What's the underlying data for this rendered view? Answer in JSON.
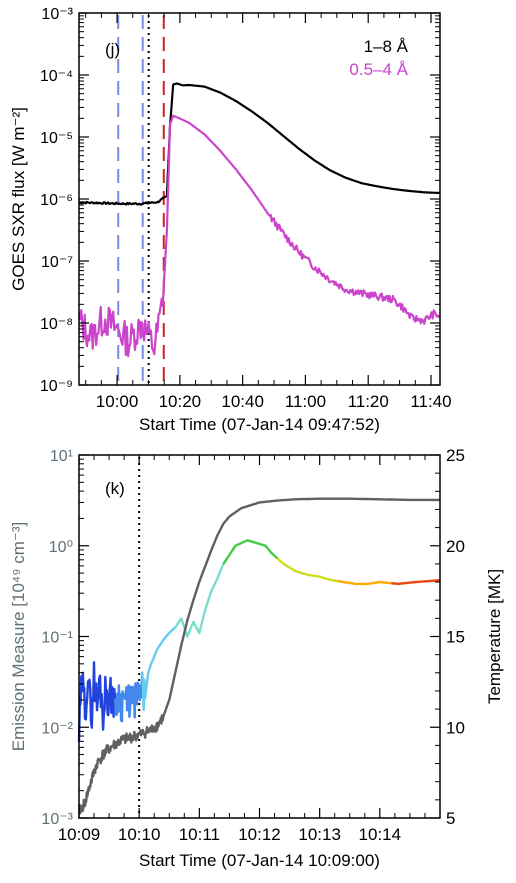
{
  "chart_data": [
    {
      "panel": "(j)",
      "type": "line",
      "xlabel": "Start Time (07-Jan-14 09:47:52)",
      "ylabel": "GOES SXR flux [W m⁻²]",
      "xticks": [
        "10:00",
        "10:20",
        "10:40",
        "11:00",
        "11:20",
        "11:40"
      ],
      "xtick_minutes": [
        12.13,
        32.13,
        52.13,
        72.13,
        92.13,
        112.13
      ],
      "xlim_minutes": [
        0,
        115
      ],
      "y_log": true,
      "ylim": [
        1e-09,
        0.001
      ],
      "yticks": [
        "10⁻⁹",
        "10⁻⁸",
        "10⁻⁷",
        "10⁻⁶",
        "10⁻⁵",
        "10⁻⁴",
        "10⁻³"
      ],
      "ytick_values": [
        1e-09,
        1e-08,
        1e-07,
        1e-06,
        1e-05,
        0.0001,
        0.001
      ],
      "legend_position": "top-right",
      "series": [
        {
          "name": "1–8 Å",
          "color": "#000000",
          "x": [
            0,
            5,
            10,
            15,
            20,
            25,
            28,
            29,
            30,
            31,
            32,
            33,
            35,
            40,
            45,
            50,
            55,
            60,
            65,
            70,
            75,
            80,
            85,
            90,
            95,
            100,
            105,
            110,
            115
          ],
          "y": [
            8.8e-07,
            8.7e-07,
            8.5e-07,
            8.4e-07,
            8.4e-07,
            8.9e-07,
            1.1e-06,
            1.5e-05,
            7e-05,
            7.3e-05,
            7.1e-05,
            6.8e-05,
            6.9e-05,
            6.5e-05,
            5.2e-05,
            3.8e-05,
            2.6e-05,
            1.7e-05,
            1.05e-05,
            6.5e-06,
            4.2e-06,
            2.9e-06,
            2.2e-06,
            1.8e-06,
            1.6e-06,
            1.45e-06,
            1.35e-06,
            1.28e-06,
            1.25e-06
          ]
        },
        {
          "name": "0.5–4 Å",
          "color": "#cc44cc",
          "x": [
            0,
            4,
            8,
            12,
            16,
            20,
            24,
            26,
            27,
            28,
            29,
            30,
            32,
            35,
            40,
            45,
            50,
            55,
            60,
            65,
            70,
            75,
            80,
            85,
            90,
            95,
            100,
            103,
            106,
            110,
            113,
            115
          ],
          "y": [
            1.1e-08,
            6e-09,
            1.2e-08,
            8e-09,
            5e-09,
            1e-08,
            4e-09,
            1.4e-08,
            4e-08,
            3e-07,
            1.6e-05,
            2.2e-05,
            2e-05,
            1.7e-05,
            1.1e-05,
            6e-06,
            3e-06,
            1.4e-06,
            6e-07,
            2.8e-07,
            1.4e-07,
            8e-08,
            5e-08,
            3.5e-08,
            3e-08,
            2.7e-08,
            2.4e-08,
            1.8e-08,
            1.2e-08,
            1.1e-08,
            1.4e-08,
            1.3e-08
          ]
        }
      ],
      "vlines": [
        {
          "x_minutes": 12.5,
          "color": "#7a88e8",
          "style": "dashed"
        },
        {
          "x_minutes": 20.3,
          "color": "#7a88e8",
          "style": "dashed"
        },
        {
          "x_minutes": 22.2,
          "color": "#000000",
          "style": "dotted"
        },
        {
          "x_minutes": 27.0,
          "color": "#cc2222",
          "style": "dashed"
        }
      ]
    },
    {
      "panel": "(k)",
      "type": "line",
      "xlabel": "Start Time (07-Jan-14 10:09:00)",
      "ylabel_left": "Emission Measure [10⁴⁹ cm⁻³]",
      "ylabel_right": "Temperature [MK]",
      "xticks": [
        "10:09",
        "10:10",
        "10:11",
        "10:12",
        "10:13",
        "10:14"
      ],
      "xtick_minutes": [
        0,
        1,
        2,
        3,
        4,
        5
      ],
      "xlim_minutes": [
        0,
        6
      ],
      "y_log": true,
      "ylim_left": [
        0.001,
        10
      ],
      "yticks_left": [
        "10⁻³",
        "10⁻²",
        "10⁻¹",
        "10⁰",
        "10¹"
      ],
      "ytick_values_left": [
        0.001,
        0.01,
        0.1,
        1,
        10
      ],
      "ylim_right": [
        5,
        25
      ],
      "yticks_right": [
        "5",
        "10",
        "15",
        "20",
        "25"
      ],
      "ytick_values_right": [
        5,
        10,
        15,
        20,
        25
      ],
      "vlines": [
        {
          "x_minutes": 1.0,
          "color": "#000000",
          "style": "dotted"
        }
      ],
      "series": [
        {
          "role": "emission-measure",
          "color": "#606060",
          "x": [
            0.0,
            0.05,
            0.1,
            0.2,
            0.3,
            0.4,
            0.5,
            0.6,
            0.7,
            0.8,
            0.9,
            1.0,
            1.1,
            1.2,
            1.3,
            1.4,
            1.5,
            1.6,
            1.7,
            1.8,
            1.9,
            2.0,
            2.1,
            2.2,
            2.3,
            2.4,
            2.5,
            2.7,
            3.0,
            3.3,
            3.6,
            4.0,
            4.5,
            5.0,
            5.5,
            6.0
          ],
          "y": [
            0.0012,
            0.0013,
            0.0015,
            0.0025,
            0.004,
            0.005,
            0.0058,
            0.0065,
            0.0071,
            0.0075,
            0.0079,
            0.0082,
            0.0088,
            0.0093,
            0.0105,
            0.013,
            0.02,
            0.04,
            0.08,
            0.15,
            0.25,
            0.4,
            0.6,
            0.9,
            1.3,
            1.75,
            2.1,
            2.6,
            3.0,
            3.15,
            3.25,
            3.3,
            3.3,
            3.25,
            3.2,
            3.2
          ]
        },
        {
          "role": "temperature",
          "colors": [
            "#2244dd",
            "#4488ee",
            "#66ccee",
            "#77ddcc",
            "#44cc44",
            "#ccdd22",
            "#ffaa00",
            "#ee4411"
          ],
          "x": [
            0.0,
            0.05,
            0.1,
            0.15,
            0.2,
            0.25,
            0.3,
            0.35,
            0.4,
            0.45,
            0.5,
            0.55,
            0.6,
            0.65,
            0.7,
            0.75,
            0.8,
            0.85,
            0.9,
            0.95,
            1.0,
            1.05,
            1.1,
            1.15,
            1.2,
            1.3,
            1.4,
            1.5,
            1.6,
            1.7,
            1.8,
            1.9,
            2.0,
            2.1,
            2.2,
            2.3,
            2.4,
            2.6,
            2.8,
            3.0,
            3.1,
            3.2,
            3.4,
            3.6,
            3.8,
            4.0,
            4.2,
            4.4,
            4.6,
            4.8,
            5.0,
            5.3,
            5.6,
            6.0
          ],
          "y": [
            9.5,
            12.5,
            11.0,
            13.0,
            10.5,
            12.8,
            11.2,
            12.5,
            10.8,
            12.2,
            11.4,
            12.0,
            10.9,
            11.9,
            11.3,
            11.8,
            11.0,
            11.7,
            11.2,
            11.8,
            11.5,
            12.0,
            11.6,
            13.0,
            13.5,
            14.3,
            14.8,
            15.2,
            15.5,
            16.0,
            15.0,
            15.8,
            15.2,
            16.5,
            17.5,
            18.2,
            19.0,
            20.0,
            20.3,
            20.1,
            20.0,
            19.6,
            19.0,
            18.6,
            18.4,
            18.3,
            18.1,
            18.0,
            17.9,
            17.9,
            18.0,
            17.9,
            18.0,
            18.1
          ]
        }
      ]
    }
  ]
}
